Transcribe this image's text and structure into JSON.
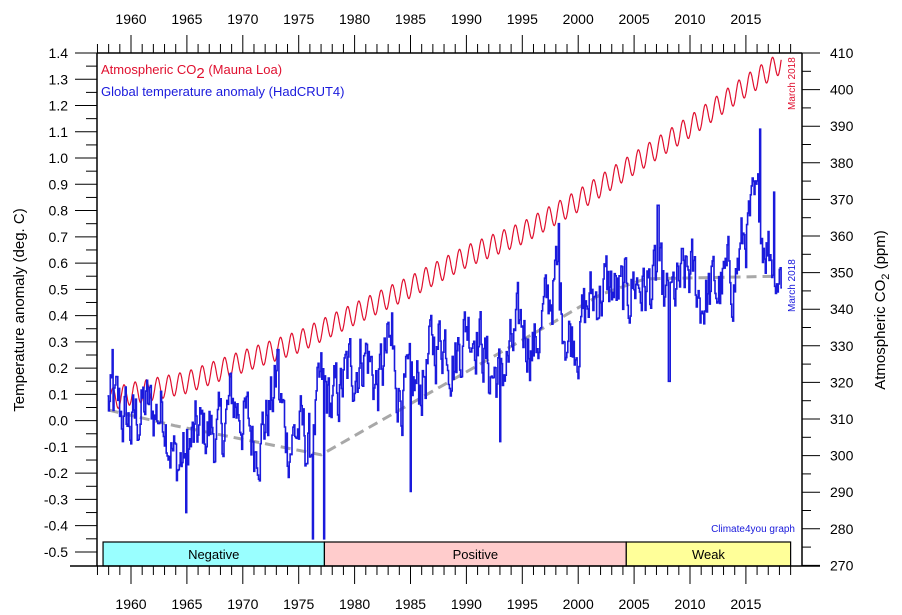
{
  "chart_data": {
    "type": "line",
    "title": "",
    "xlabel": "",
    "ylabel_left": "Temperature anomaly (deg. C)",
    "ylabel_right_prefix": "Atmospheric CO",
    "ylabel_right_sub": "2",
    "ylabel_right_suffix": " (ppm)",
    "xlim": [
      1957,
      2019.2
    ],
    "ylim_left": [
      -0.5,
      1.4
    ],
    "ylim_right": [
      270,
      410
    ],
    "x_ticks": [
      1960,
      1965,
      1970,
      1975,
      1980,
      1985,
      1990,
      1995,
      2000,
      2005,
      2010,
      2015
    ],
    "y_left_ticks": [
      -0.5,
      -0.4,
      -0.3,
      -0.2,
      -0.1,
      0.0,
      0.1,
      0.2,
      0.3,
      0.4,
      0.5,
      0.6,
      0.7,
      0.8,
      0.9,
      1.0,
      1.1,
      1.2,
      1.3,
      1.4
    ],
    "y_right_ticks": [
      270,
      280,
      290,
      300,
      310,
      320,
      330,
      340,
      350,
      360,
      370,
      380,
      390,
      400,
      410
    ],
    "legend": {
      "placement": "top-left",
      "co2_prefix": "Atmospheric CO",
      "co2_sub": "2",
      "co2_suffix": " (Mauna Loa)",
      "temp": "Global temperature anomaly (HadCRUT4)"
    },
    "colors": {
      "co2": "#e0102f",
      "temp": "#1a1adc",
      "trend": "#a8a8a8"
    },
    "annotations": {
      "co2_end": "March 2018",
      "temp_end": "March 2018",
      "credit": "Climate4you graph"
    },
    "series": [
      {
        "name": "Atmospheric CO2 (Mauna Loa)",
        "axis": "right",
        "seasonal_amplitude_ppm": 3,
        "x": [
          1958.2,
          1960,
          1965,
          1970,
          1975,
          1980,
          1985,
          1990,
          1995,
          2000,
          2005,
          2010,
          2015,
          2018.2
        ],
        "values": [
          315.3,
          316.9,
          320.0,
          325.7,
          331.1,
          338.7,
          346.1,
          354.4,
          360.8,
          369.6,
          379.8,
          389.9,
          401.0,
          407.5
        ]
      },
      {
        "name": "Global temperature anomaly (HadCRUT4)",
        "axis": "left",
        "x": [
          1958,
          1959,
          1960,
          1961,
          1962,
          1963,
          1964,
          1965,
          1966,
          1967,
          1968,
          1969,
          1970,
          1971,
          1972,
          1973,
          1974,
          1975,
          1976,
          1977,
          1978,
          1979,
          1980,
          1981,
          1982,
          1983,
          1984,
          1985,
          1986,
          1987,
          1988,
          1989,
          1990,
          1991,
          1992,
          1993,
          1994,
          1995,
          1996,
          1997,
          1998,
          1999,
          2000,
          2001,
          2002,
          2003,
          2004,
          2005,
          2006,
          2007,
          2008,
          2009,
          2010,
          2011,
          2012,
          2013,
          2014,
          2015,
          2016,
          2017,
          2018
        ],
        "values": [
          0.06,
          0.03,
          -0.03,
          0.05,
          0.03,
          0.05,
          -0.18,
          -0.11,
          -0.06,
          -0.03,
          -0.07,
          0.08,
          0.02,
          -0.08,
          0.0,
          0.14,
          -0.08,
          -0.03,
          -0.12,
          0.12,
          0.05,
          0.14,
          0.22,
          0.27,
          0.12,
          0.27,
          0.12,
          0.09,
          0.15,
          0.28,
          0.33,
          0.24,
          0.38,
          0.35,
          0.18,
          0.18,
          0.25,
          0.37,
          0.28,
          0.4,
          0.55,
          0.33,
          0.34,
          0.45,
          0.5,
          0.5,
          0.45,
          0.54,
          0.5,
          0.52,
          0.42,
          0.5,
          0.56,
          0.46,
          0.49,
          0.51,
          0.56,
          0.72,
          0.78,
          0.68,
          0.57
        ],
        "extremes": [
          [
            1958.3,
            0.27
          ],
          [
            1964.9,
            -0.35
          ],
          [
            1973.1,
            0.27
          ],
          [
            1976.2,
            -0.45
          ],
          [
            1977.2,
            -0.45
          ],
          [
            1983.3,
            0.41
          ],
          [
            1985.0,
            -0.27
          ],
          [
            1993.0,
            -0.08
          ],
          [
            1998.2,
            0.75
          ],
          [
            2000.0,
            0.16
          ],
          [
            2007.1,
            0.82
          ],
          [
            2008.1,
            0.15
          ],
          [
            2016.2,
            1.11
          ],
          [
            2017.5,
            0.87
          ]
        ]
      },
      {
        "name": "Trend",
        "axis": "left",
        "style": "dashed",
        "x": [
          1958,
          1964,
          1977,
          1998,
          2002,
          2006,
          2018
        ],
        "values": [
          0.04,
          -0.02,
          -0.13,
          0.38,
          0.48,
          0.54,
          0.55
        ]
      }
    ],
    "bands": [
      {
        "label": "Negative",
        "start": 1957.5,
        "end": 1977.3,
        "color": "#99ffff"
      },
      {
        "label": "Positive",
        "start": 1977.3,
        "end": 2004.3,
        "color": "#ffcccc"
      },
      {
        "label": "Weak",
        "start": 2004.3,
        "end": 2019.0,
        "color": "#ffff99"
      }
    ]
  }
}
